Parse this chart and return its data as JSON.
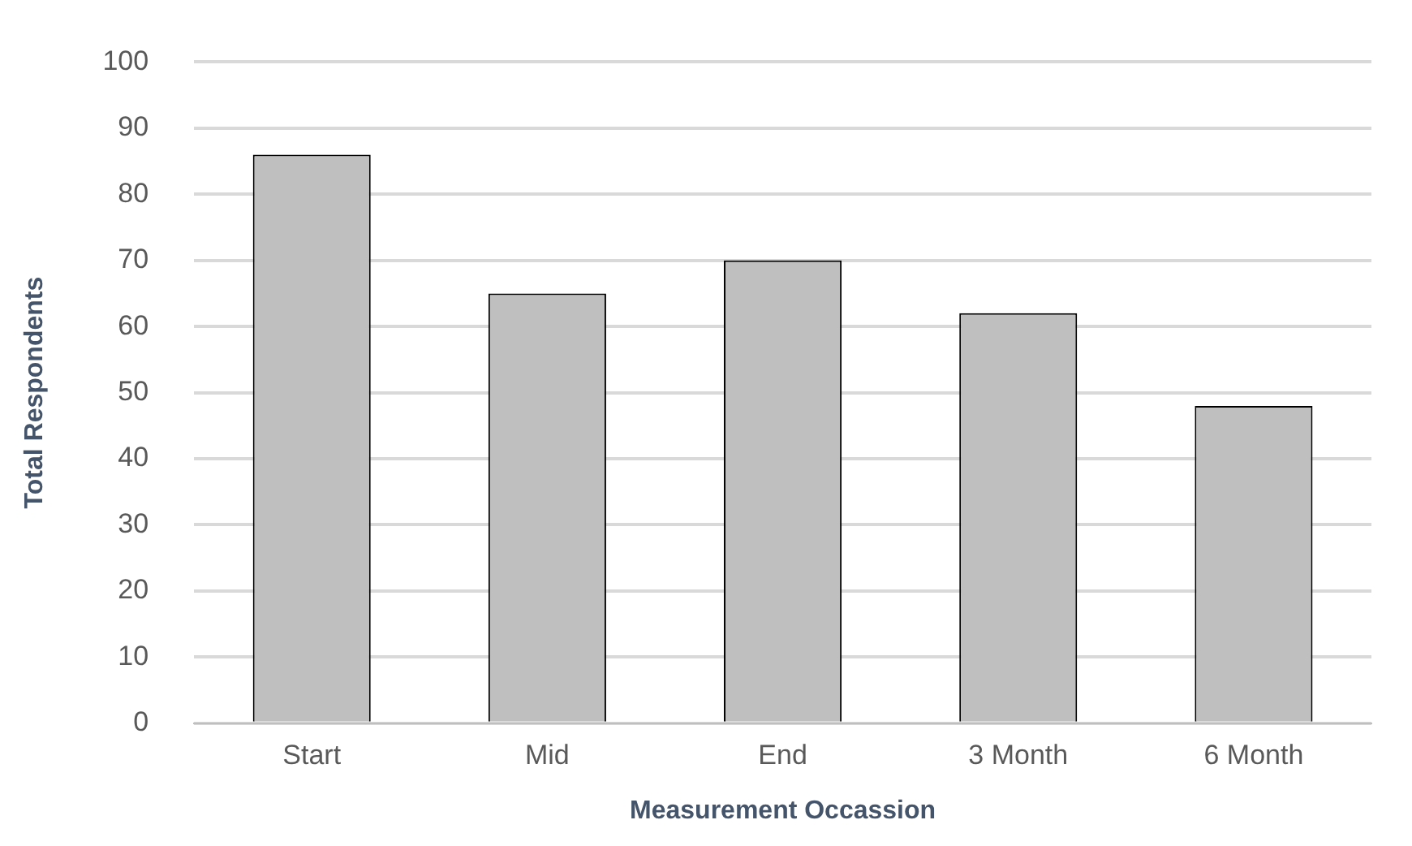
{
  "chart_data": {
    "type": "bar",
    "xlabel": "Measurement Occassion",
    "ylabel": "Total Respondents",
    "categories": [
      "Start",
      "Mid",
      "End",
      "3 Month",
      "6 Month"
    ],
    "values": [
      86,
      65,
      70,
      62,
      48
    ],
    "color": "#bfbfbf",
    "ylim": [
      0,
      100
    ],
    "yticks": [
      0,
      10,
      20,
      30,
      40,
      50,
      60,
      70,
      80,
      90,
      100
    ],
    "grid": "y",
    "legend": false
  }
}
